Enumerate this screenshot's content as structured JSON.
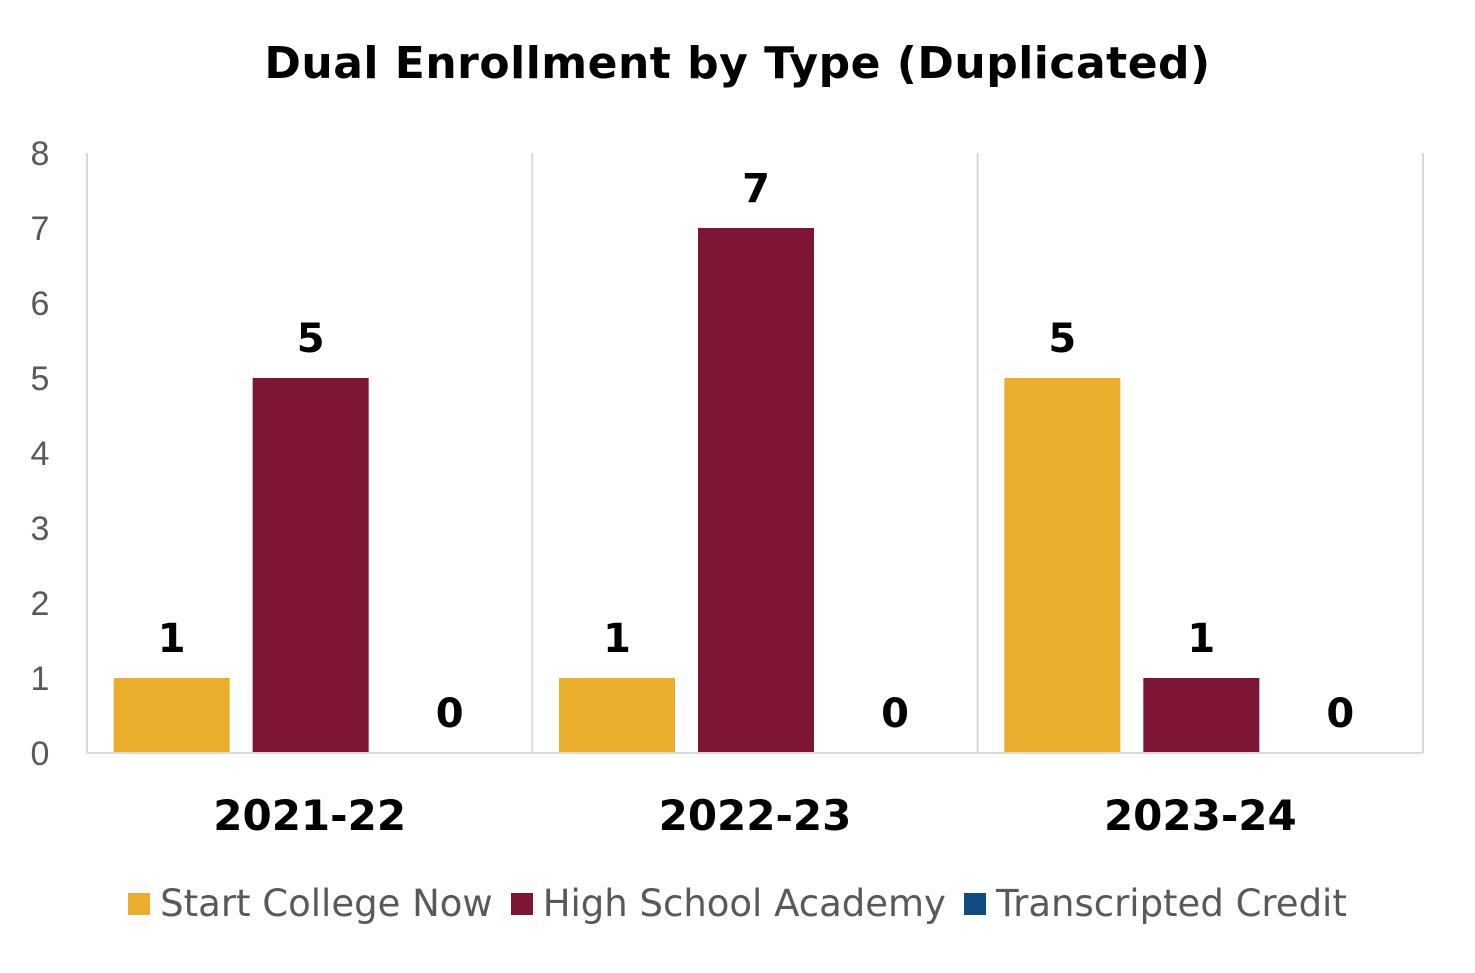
{
  "chart_data": {
    "type": "bar",
    "title": "Dual Enrollment by Type (Duplicated)",
    "categories": [
      "2021-22",
      "2022-23",
      "2023-24"
    ],
    "series": [
      {
        "name": "Start College Now",
        "values": [
          1,
          1,
          5
        ],
        "color": "#EBAE2C"
      },
      {
        "name": "High School Academy",
        "values": [
          5,
          7,
          1
        ],
        "color": "#7D1535"
      },
      {
        "name": "Transcripted Credit",
        "values": [
          0,
          0,
          0
        ],
        "color": "#0F4C81"
      }
    ],
    "xlabel": "",
    "ylabel": "",
    "ylim": [
      0,
      8
    ],
    "yticks": [
      0,
      1,
      2,
      3,
      4,
      5,
      6,
      7,
      8
    ],
    "grid": false,
    "category_dividers": true,
    "data_labels": true,
    "legend": "bottom"
  }
}
